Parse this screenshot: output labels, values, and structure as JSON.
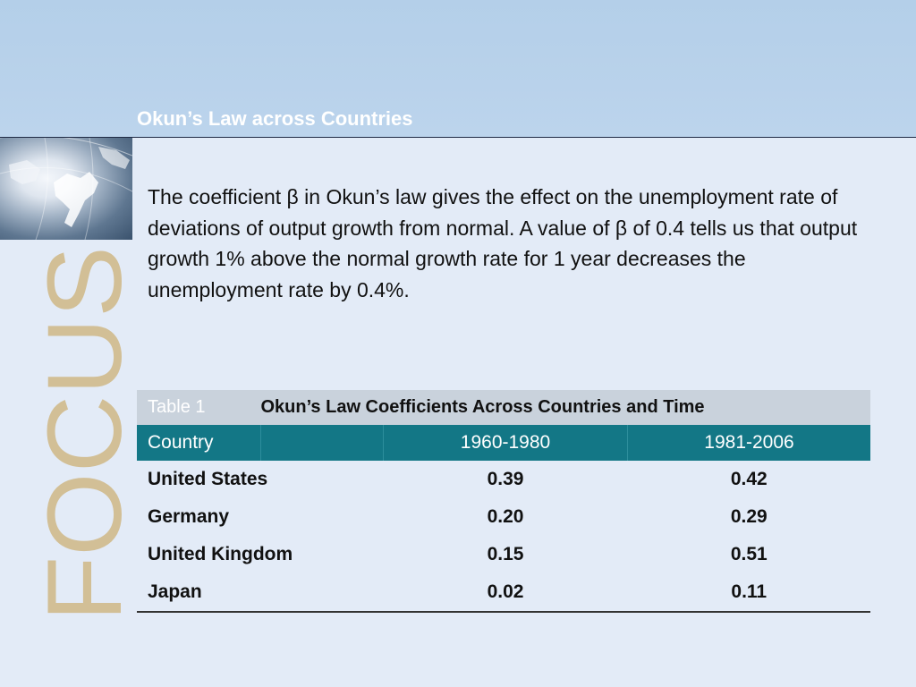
{
  "header": {
    "title": "Okun’s Law across Countries"
  },
  "sidebar": {
    "focus_label": "FOCUS"
  },
  "body": {
    "paragraph": "The coefficient β in Okun’s law gives the effect on the unemployment rate of deviations of output growth from normal. A value of β of 0.4 tells us that output growth 1% above the normal growth rate for 1 year decreases the unemployment rate by 0.4%."
  },
  "table": {
    "label": "Table 1",
    "title": "Okun’s Law Coefficients Across Countries and Time",
    "columns": [
      "Country",
      "1960-1980",
      "1981-2006"
    ],
    "rows": [
      {
        "country": "United States",
        "v1": "0.39",
        "v2": "0.42"
      },
      {
        "country": "Germany",
        "v1": "0.20",
        "v2": "0.29"
      },
      {
        "country": "United Kingdom",
        "v1": "0.15",
        "v2": "0.51"
      },
      {
        "country": "Japan",
        "v1": "0.02",
        "v2": "0.11"
      }
    ]
  },
  "colors": {
    "header_bg": "#b8d1ea",
    "page_bg": "#e3ebf7",
    "table_header": "#137786",
    "focus_text": "#d2bf96"
  }
}
